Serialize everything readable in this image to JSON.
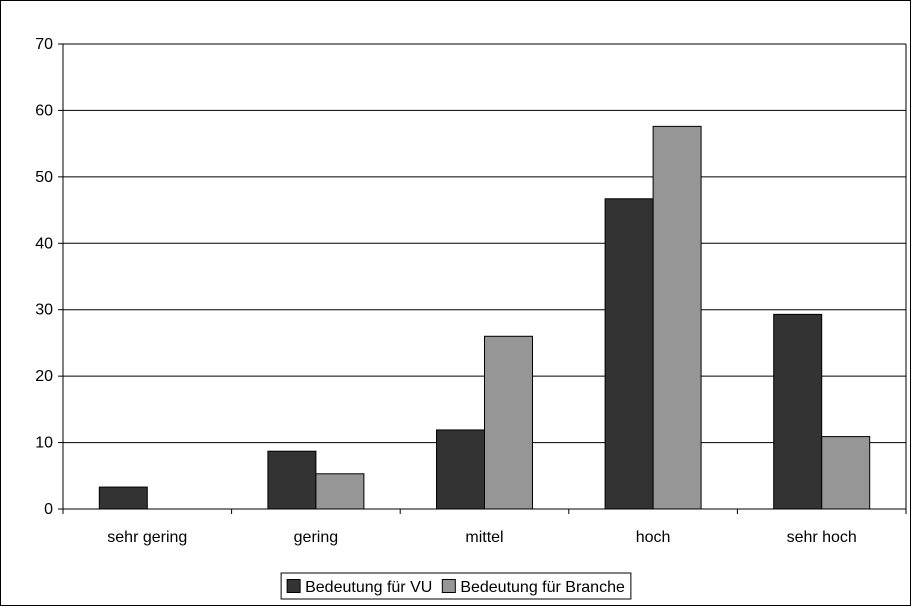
{
  "chart_data": {
    "type": "bar",
    "title": "",
    "xlabel": "",
    "ylabel": "",
    "categories": [
      "sehr gering",
      "gering",
      "mittel",
      "hoch",
      "sehr hoch"
    ],
    "series": [
      {
        "name": "Bedeutung für VU",
        "color": "#333333",
        "values": [
          3.3,
          8.7,
          11.9,
          46.7,
          29.3
        ]
      },
      {
        "name": "Bedeutung für Branche",
        "color": "#969696",
        "values": [
          0,
          5.3,
          26.0,
          57.6,
          10.9
        ]
      }
    ],
    "ylim": [
      0,
      70
    ],
    "yticks": [
      "0",
      "10",
      "20",
      "30",
      "40",
      "50",
      "60",
      "70"
    ],
    "grid": true,
    "legend_position": "bottom-center"
  }
}
